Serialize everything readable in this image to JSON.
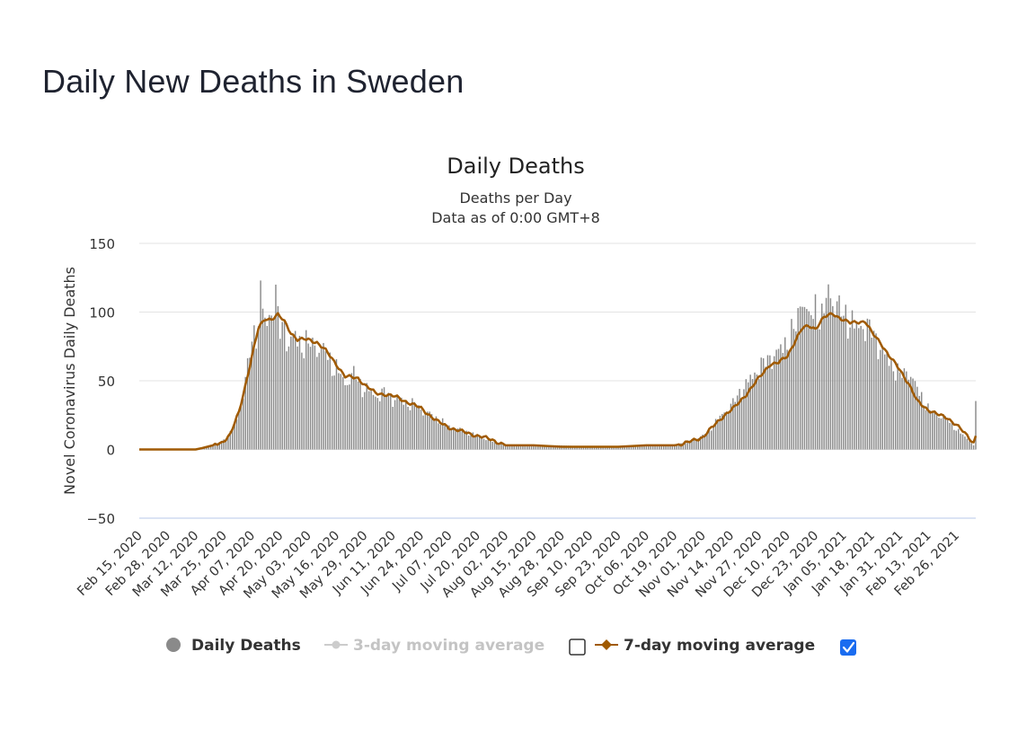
{
  "page": {
    "title": "Daily New Deaths in Sweden"
  },
  "chart_data": {
    "type": "bar",
    "title": "Daily Deaths",
    "subtitle_line1": "Deaths per Day",
    "subtitle_line2": "Data as of 0:00 GMT+8",
    "ylabel": "Novel Coronavirus Daily Deaths",
    "xlabel": "",
    "ylim": [
      -50,
      150
    ],
    "yticks": [
      150,
      100,
      50,
      0,
      -50
    ],
    "grid": true,
    "x_start": "Feb 15, 2020",
    "x_end": "Mar 07, 2021",
    "x_tick_labels": [
      "Feb 15, 2020",
      "Feb 28, 2020",
      "Mar 12, 2020",
      "Mar 25, 2020",
      "Apr 07, 2020",
      "Apr 20, 2020",
      "May 03, 2020",
      "May 16, 2020",
      "May 29, 2020",
      "Jun 11, 2020",
      "Jun 24, 2020",
      "Jul 07, 2020",
      "Jul 20, 2020",
      "Aug 02, 2020",
      "Aug 15, 2020",
      "Aug 28, 2020",
      "Sep 10, 2020",
      "Sep 23, 2020",
      "Oct 06, 2020",
      "Oct 19, 2020",
      "Nov 01, 2020",
      "Nov 14, 2020",
      "Nov 27, 2020",
      "Dec 10, 2020",
      "Dec 23, 2020",
      "Jan 05, 2021",
      "Jan 18, 2021",
      "Jan 31, 2021",
      "Feb 13, 2021",
      "Feb 26, 2021"
    ],
    "colors": {
      "bars": "#8a8a8a",
      "ma7": "#a05a00",
      "ma3": "#cccccc",
      "grid": "#e3e3e3",
      "zero_axis": "#b7c7ea",
      "checkbox": "#1a6cf0"
    },
    "series": [
      {
        "name": "Daily Deaths",
        "points": [
          [
            "Feb 15, 2020",
            0
          ],
          [
            "Mar 12, 2020",
            0
          ],
          [
            "Mar 16, 2020",
            2
          ],
          [
            "Mar 20, 2020",
            3
          ],
          [
            "Mar 25, 2020",
            7
          ],
          [
            "Mar 28, 2020",
            12
          ],
          [
            "Mar 31, 2020",
            22
          ],
          [
            "Apr 02, 2020",
            35
          ],
          [
            "Apr 04, 2020",
            50
          ],
          [
            "Apr 06, 2020",
            70
          ],
          [
            "Apr 08, 2020",
            88
          ],
          [
            "Apr 10, 2020",
            95
          ],
          [
            "Apr 11, 2020",
            114
          ],
          [
            "Apr 13, 2020",
            90
          ],
          [
            "Apr 15, 2020",
            100
          ],
          [
            "Apr 17, 2020",
            113
          ],
          [
            "Apr 18, 2020",
            109
          ],
          [
            "Apr 20, 2020",
            85
          ],
          [
            "Apr 22, 2020",
            95
          ],
          [
            "Apr 24, 2020",
            78
          ],
          [
            "Apr 27, 2020",
            82
          ],
          [
            "Apr 30, 2020",
            80
          ],
          [
            "May 03, 2020",
            75
          ],
          [
            "May 06, 2020",
            80
          ],
          [
            "May 09, 2020",
            72
          ],
          [
            "May 12, 2020",
            70
          ],
          [
            "May 16, 2020",
            58
          ],
          [
            "May 20, 2020",
            50
          ],
          [
            "May 24, 2020",
            55
          ],
          [
            "May 29, 2020",
            45
          ],
          [
            "Jun 03, 2020",
            40
          ],
          [
            "Jun 08, 2020",
            42
          ],
          [
            "Jun 11, 2020",
            38
          ],
          [
            "Jun 16, 2020",
            35
          ],
          [
            "Jun 21, 2020",
            33
          ],
          [
            "Jun 24, 2020",
            30
          ],
          [
            "Jun 29, 2020",
            25
          ],
          [
            "Jul 04, 2020",
            20
          ],
          [
            "Jul 07, 2020",
            17
          ],
          [
            "Jul 13, 2020",
            14
          ],
          [
            "Jul 20, 2020",
            10
          ],
          [
            "Jul 27, 2020",
            6
          ],
          [
            "Aug 02, 2020",
            3
          ],
          [
            "Aug 15, 2020",
            3
          ],
          [
            "Aug 28, 2020",
            3
          ],
          [
            "Sep 10, 2020",
            2
          ],
          [
            "Sep 23, 2020",
            2
          ],
          [
            "Oct 06, 2020",
            3
          ],
          [
            "Oct 19, 2020",
            3
          ],
          [
            "Oct 25, 2020",
            6
          ],
          [
            "Nov 01, 2020",
            10
          ],
          [
            "Nov 06, 2020",
            18
          ],
          [
            "Nov 11, 2020",
            28
          ],
          [
            "Nov 14, 2020",
            32
          ],
          [
            "Nov 18, 2020",
            42
          ],
          [
            "Nov 22, 2020",
            50
          ],
          [
            "Nov 27, 2020",
            60
          ],
          [
            "Dec 02, 2020",
            68
          ],
          [
            "Dec 06, 2020",
            72
          ],
          [
            "Dec 10, 2020",
            80
          ],
          [
            "Dec 14, 2020",
            90
          ],
          [
            "Dec 17, 2020",
            116
          ],
          [
            "Dec 20, 2020",
            95
          ],
          [
            "Dec 23, 2020",
            105
          ],
          [
            "Dec 26, 2020",
            95
          ],
          [
            "Dec 29, 2020",
            118
          ],
          [
            "Jan 01, 2021",
            108
          ],
          [
            "Jan 05, 2021",
            100
          ],
          [
            "Jan 08, 2021",
            95
          ],
          [
            "Jan 11, 2021",
            90
          ],
          [
            "Jan 14, 2021",
            92
          ],
          [
            "Jan 18, 2021",
            88
          ],
          [
            "Jan 22, 2021",
            75
          ],
          [
            "Jan 26, 2021",
            65
          ],
          [
            "Jan 31, 2021",
            55
          ],
          [
            "Feb 04, 2021",
            58
          ],
          [
            "Feb 08, 2021",
            45
          ],
          [
            "Feb 13, 2021",
            30
          ],
          [
            "Feb 18, 2021",
            25
          ],
          [
            "Feb 22, 2021",
            22
          ],
          [
            "Feb 26, 2021",
            15
          ],
          [
            "Mar 03, 2021",
            8
          ],
          [
            "Mar 06, 2021",
            3
          ],
          [
            "Mar 07, 2021",
            33
          ]
        ]
      },
      {
        "name": "7-day moving average",
        "points": [
          [
            "Feb 15, 2020",
            0
          ],
          [
            "Mar 12, 2020",
            0
          ],
          [
            "Mar 15, 2020",
            1
          ],
          [
            "Mar 20, 2020",
            3
          ],
          [
            "Mar 24, 2020",
            5
          ],
          [
            "Mar 28, 2020",
            11
          ],
          [
            "Apr 01, 2020",
            27
          ],
          [
            "Apr 04, 2020",
            47
          ],
          [
            "Apr 07, 2020",
            68
          ],
          [
            "Apr 10, 2020",
            88
          ],
          [
            "Apr 13, 2020",
            95
          ],
          [
            "Apr 16, 2020",
            95
          ],
          [
            "Apr 19, 2020",
            98
          ],
          [
            "Apr 22, 2020",
            93
          ],
          [
            "Apr 25, 2020",
            85
          ],
          [
            "Apr 28, 2020",
            80
          ],
          [
            "May 03, 2020",
            80
          ],
          [
            "May 07, 2020",
            78
          ],
          [
            "May 11, 2020",
            72
          ],
          [
            "May 16, 2020",
            62
          ],
          [
            "May 20, 2020",
            53
          ],
          [
            "May 26, 2020",
            52
          ],
          [
            "May 29, 2020",
            47
          ],
          [
            "Jun 03, 2020",
            41
          ],
          [
            "Jun 08, 2020",
            40
          ],
          [
            "Jun 13, 2020",
            38
          ],
          [
            "Jun 17, 2020",
            35
          ],
          [
            "Jun 24, 2020",
            30
          ],
          [
            "Jun 28, 2020",
            25
          ],
          [
            "Jul 02, 2020",
            20
          ],
          [
            "Jul 07, 2020",
            16
          ],
          [
            "Jul 13, 2020",
            13
          ],
          [
            "Jul 20, 2020",
            10
          ],
          [
            "Jul 27, 2020",
            7
          ],
          [
            "Aug 02, 2020",
            3
          ],
          [
            "Aug 15, 2020",
            3
          ],
          [
            "Aug 28, 2020",
            2
          ],
          [
            "Sep 10, 2020",
            2
          ],
          [
            "Sep 23, 2020",
            2
          ],
          [
            "Oct 06, 2020",
            3
          ],
          [
            "Oct 19, 2020",
            3
          ],
          [
            "Oct 25, 2020",
            5
          ],
          [
            "Nov 01, 2020",
            9
          ],
          [
            "Nov 06, 2020",
            17
          ],
          [
            "Nov 11, 2020",
            25
          ],
          [
            "Nov 16, 2020",
            31
          ],
          [
            "Nov 21, 2020",
            40
          ],
          [
            "Nov 27, 2020",
            52
          ],
          [
            "Dec 02, 2020",
            62
          ],
          [
            "Dec 06, 2020",
            63
          ],
          [
            "Dec 10, 2020",
            68
          ],
          [
            "Dec 14, 2020",
            80
          ],
          [
            "Dec 17, 2020",
            88
          ],
          [
            "Dec 20, 2020",
            90
          ],
          [
            "Dec 23, 2020",
            88
          ],
          [
            "Dec 27, 2020",
            96
          ],
          [
            "Dec 31, 2020",
            99
          ],
          [
            "Jan 05, 2021",
            94
          ],
          [
            "Jan 08, 2021",
            92
          ],
          [
            "Jan 11, 2021",
            93
          ],
          [
            "Jan 15, 2021",
            93
          ],
          [
            "Jan 18, 2021",
            85
          ],
          [
            "Jan 22, 2021",
            78
          ],
          [
            "Jan 26, 2021",
            68
          ],
          [
            "Jan 31, 2021",
            58
          ],
          [
            "Feb 04, 2021",
            48
          ],
          [
            "Feb 08, 2021",
            35
          ],
          [
            "Feb 13, 2021",
            29
          ],
          [
            "Feb 18, 2021",
            25
          ],
          [
            "Feb 22, 2021",
            23
          ],
          [
            "Feb 26, 2021",
            18
          ],
          [
            "Mar 03, 2021",
            10
          ],
          [
            "Mar 06, 2021",
            5
          ],
          [
            "Mar 07, 2021",
            10
          ]
        ]
      }
    ],
    "legend": {
      "position": "bottom",
      "items": [
        {
          "label": "Daily Deaths",
          "marker": "circle",
          "enabled": true,
          "has_checkbox": false
        },
        {
          "label": "3-day moving average",
          "marker": "line-dot",
          "enabled": false,
          "has_checkbox": true,
          "checked": false
        },
        {
          "label": "7-day moving average",
          "marker": "line-diamond",
          "enabled": true,
          "has_checkbox": true,
          "checked": true
        }
      ]
    }
  }
}
